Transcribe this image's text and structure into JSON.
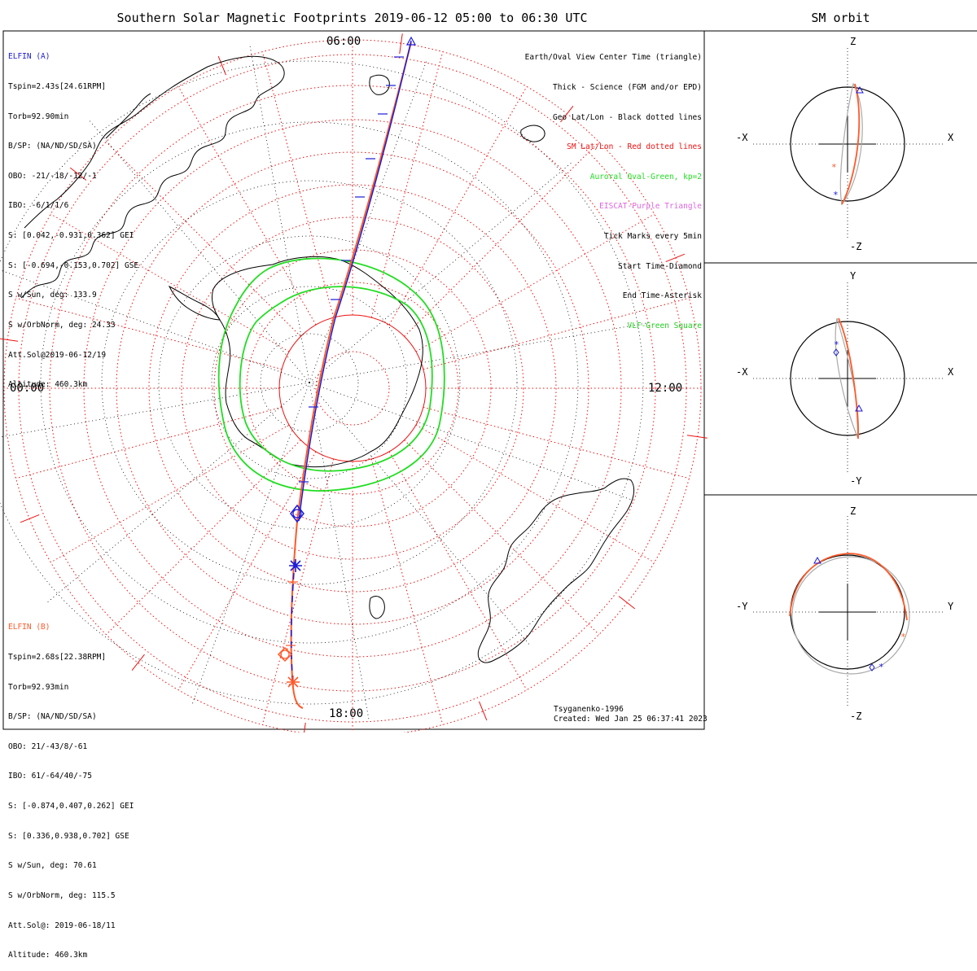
{
  "title": "Southern Solar Magnetic Footprints 2019-06-12 05:00 to 06:30 UTC",
  "orbit_panel_title": "SM orbit",
  "colors": {
    "elfin_a": "#1b1bd8",
    "elfin_b": "#ff5a2a",
    "oval": "#22dd22",
    "sm_grid": "#ee1111",
    "geo_grid": "#000000",
    "eiscat": "#dd66dd",
    "vlf": "#22cc22",
    "orbit_circle": "#000000",
    "orbit_gray": "#aaaaaa"
  },
  "elfin_a": {
    "label": "ELFIN (A)",
    "lines": [
      "Tspin=2.43s[24.61RPM]",
      "Torb=92.90min",
      "B/SP: (NA/ND/SD/SA)",
      "OBO: -21/-18/-12/-1",
      "IBO: -6/1/1/6",
      "S: [0.042,-0.931,0.362] GEI",
      "S: [-0.694,-0.153,0.702] GSE",
      "S w/Sun, deg: 133.9",
      "S w/OrbNorm, deg: 24.33",
      "Att.Sol@2019-06-12/19",
      "Altitude: 460.3km"
    ]
  },
  "elfin_b": {
    "label": "ELFIN (B)",
    "lines": [
      "Tspin=2.68s[22.38RPM]",
      "Torb=92.93min",
      "B/SP: (NA/ND/SD/SA)",
      "OBO: 21/-43/8/-61",
      "IBO: 61/-64/40/-75",
      "S: [-0.874,0.407,0.262] GEI",
      "S: [0.336,0.938,0.702] GSE",
      "S w/Sun, deg: 70.61",
      "S w/OrbNorm, deg: 115.5",
      "Att.Sol@: 2019-06-18/11",
      "Altitude: 460.3km"
    ]
  },
  "legend": [
    {
      "text": "Earth/Oval View Center Time (triangle)",
      "color": "#000000"
    },
    {
      "text": "Thick - Science (FGM and/or EPD)",
      "color": "#000000"
    },
    {
      "text": "Geo Lat/Lon - Black dotted lines",
      "color": "#000000"
    },
    {
      "text": "SM Lat/Lon - Red dotted lines",
      "color": "#ee1111"
    },
    {
      "text": "Auroral Oval-Green, kp=2",
      "color": "#22dd22"
    },
    {
      "text": "EISCAT-Purple Triangle",
      "color": "#dd66dd"
    },
    {
      "text": "Tick Marks every 5min",
      "color": "#000000"
    },
    {
      "text": "Start Time-Diamond",
      "color": "#000000"
    },
    {
      "text": "End Time-Asterisk",
      "color": "#000000"
    },
    {
      "text": "VLF-Green Square",
      "color": "#22cc22"
    }
  ],
  "clock_labels": {
    "top": "06:00",
    "left": "00:00",
    "right": "12:00",
    "bottom": "18:00"
  },
  "credit": {
    "model": "Tsyganenko-1996",
    "created": "Created: Wed Jan 25 06:37:41 2023"
  },
  "orbit_panels": [
    {
      "name": "xz",
      "top": "Z",
      "bottom": "-Z",
      "left": "-X",
      "right": "X"
    },
    {
      "name": "xy",
      "top": "Y",
      "bottom": "-Y",
      "left": "-X",
      "right": "X"
    },
    {
      "name": "yz",
      "top": "Z",
      "bottom": "-Z",
      "left": "-Y",
      "right": "Y"
    }
  ]
}
